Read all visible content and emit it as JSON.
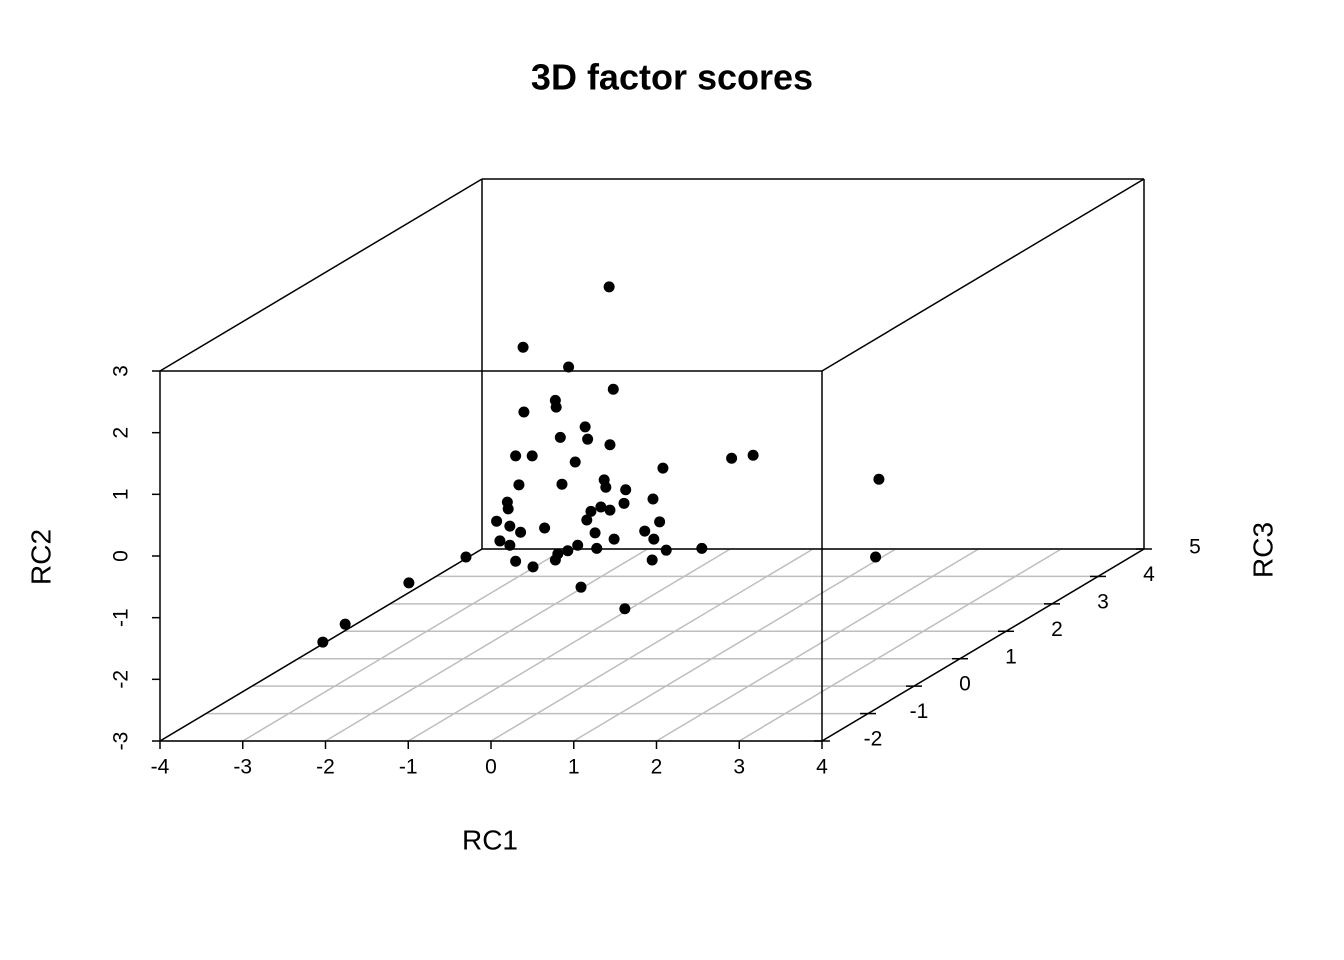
{
  "chart_data": {
    "type": "scatter3d",
    "title": "3D factor scores",
    "x_label": "RC1",
    "y_label": "RC2",
    "z_label": "RC3",
    "xlim": [
      -4,
      4
    ],
    "ylim": [
      -3,
      3
    ],
    "zlim": [
      -2,
      5
    ],
    "xticks": [
      -4,
      -3,
      -2,
      -1,
      0,
      1,
      2,
      3,
      4
    ],
    "yticks": [
      -3,
      -2,
      -1,
      0,
      1,
      2,
      3
    ],
    "zticks": [
      -2,
      -1,
      0,
      1,
      2,
      3,
      4,
      5
    ],
    "grid": true,
    "color": "#000000",
    "x": [
      -0.24,
      -1.28,
      -0.73,
      -0.19,
      -0.89,
      -0.88,
      -1.27,
      -0.53,
      -0.83,
      -0.5,
      -0.23,
      -1.37,
      -1.17,
      -0.65,
      0.41,
      1.24,
      1.5,
      3.02,
      -0.3,
      -1.33,
      -0.81,
      -0.28,
      -0.04,
      0.29,
      -1.47,
      -0.06,
      -0.34,
      -0.46,
      -1.46,
      -0.23,
      -1.6,
      -0.51,
      -1.44,
      -1.02,
      0.37,
      -1.31,
      -0.41,
      0.19,
      -0.18,
      0.3,
      -1.56,
      -1.44,
      -0.62,
      0.45,
      0.88,
      -0.39,
      -0.74,
      -0.86,
      -1.97,
      -0.89,
      -1.37,
      -1.16,
      0.28,
      2.98,
      -2.66,
      -0.58,
      -3.43,
      -3.7,
      -0.05
    ],
    "y": [
      3.03,
      2.05,
      1.73,
      1.37,
      1.19,
      1.08,
      1.0,
      0.76,
      0.59,
      0.56,
      0.47,
      0.29,
      0.29,
      0.19,
      0.09,
      0.25,
      0.3,
      -0.09,
      -0.1,
      -0.18,
      -0.17,
      -0.22,
      -0.26,
      -0.41,
      -0.46,
      -0.48,
      -0.54,
      -0.61,
      -0.57,
      -0.59,
      -0.77,
      -0.75,
      -0.85,
      -0.88,
      -0.78,
      -0.95,
      -0.96,
      -0.93,
      -1.06,
      -1.06,
      -1.09,
      -1.16,
      -1.16,
      -1.24,
      -1.21,
      -1.21,
      -1.25,
      -1.3,
      -1.35,
      -1.4,
      -1.42,
      -1.51,
      -1.4,
      -1.35,
      -1.77,
      -1.84,
      -2.44,
      -2.73,
      -2.19
    ],
    "z": [
      1,
      1,
      1,
      1,
      1,
      1,
      1,
      1,
      1,
      1,
      1,
      1,
      1,
      1,
      1,
      1,
      1,
      1,
      1,
      1,
      1,
      1,
      1,
      1,
      1,
      1,
      1,
      1,
      1,
      1,
      1,
      1,
      1,
      1,
      1,
      1,
      1,
      1,
      1,
      1,
      1,
      1,
      1,
      1,
      1,
      1,
      1,
      1,
      1,
      1,
      1,
      1,
      1,
      1,
      1,
      1,
      1,
      1,
      1
    ]
  }
}
